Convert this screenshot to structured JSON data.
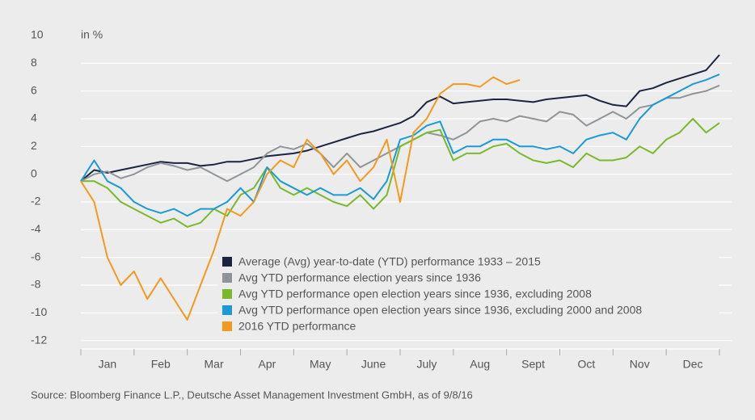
{
  "chart_data": {
    "type": "line",
    "y_unit_label": "in %",
    "source": "Source: Bloomberg Finance L.P., Deutsche Asset Management Investment GmbH, as of 9/8/16",
    "x_categories": [
      "Jan",
      "Feb",
      "Mar",
      "Apr",
      "May",
      "June",
      "July",
      "Aug",
      "Sept",
      "Oct",
      "Nov",
      "Dec"
    ],
    "xlim": [
      0,
      12
    ],
    "xticks": [
      0,
      1,
      2,
      3,
      4,
      5,
      6,
      7,
      8,
      9,
      10,
      11,
      12
    ],
    "x": [
      0,
      0.25,
      0.5,
      0.75,
      1,
      1.25,
      1.5,
      1.75,
      2,
      2.25,
      2.5,
      2.75,
      3,
      3.25,
      3.5,
      3.75,
      4,
      4.25,
      4.5,
      4.75,
      5,
      5.25,
      5.5,
      5.75,
      6,
      6.25,
      6.5,
      6.75,
      7,
      7.25,
      7.5,
      7.75,
      8,
      8.25,
      8.5,
      8.75,
      9,
      9.25,
      9.5,
      9.75,
      10,
      10.25,
      10.5,
      10.75,
      11,
      11.25,
      11.5,
      11.75,
      12
    ],
    "ylim": [
      -12.6,
      10
    ],
    "yticks": [
      10,
      8,
      6,
      4,
      2,
      0,
      -2,
      -4,
      -6,
      -8,
      -10,
      -12
    ],
    "grid": true,
    "series": [
      {
        "name": "Average (Avg) year-to-date (YTD) performance 1933 – 2015",
        "color": "#1b2440",
        "values": [
          -0.5,
          0.3,
          0.1,
          0.3,
          0.5,
          0.7,
          0.9,
          0.8,
          0.8,
          0.6,
          0.7,
          0.9,
          0.9,
          1.1,
          1.3,
          1.4,
          1.5,
          1.7,
          2.0,
          2.3,
          2.6,
          2.9,
          3.1,
          3.4,
          3.7,
          4.2,
          5.2,
          5.6,
          5.1,
          5.2,
          5.3,
          5.4,
          5.4,
          5.3,
          5.2,
          5.4,
          5.5,
          5.6,
          5.7,
          5.3,
          5.0,
          4.9,
          6.0,
          6.2,
          6.6,
          6.9,
          7.2,
          7.5,
          8.6
        ]
      },
      {
        "name": "Avg YTD performance election years since 1936",
        "color": "#8f9499",
        "values": [
          -0.5,
          0,
          0.2,
          -0.3,
          0,
          0.5,
          0.8,
          0.6,
          0.3,
          0.5,
          0,
          -0.5,
          0,
          0.5,
          1.5,
          2.0,
          1.8,
          2.2,
          1.5,
          0.5,
          1.5,
          0.5,
          1.0,
          1.5,
          2.0,
          2.5,
          3.0,
          2.8,
          2.5,
          3.0,
          3.8,
          4.0,
          3.8,
          4.2,
          4.0,
          3.8,
          4.5,
          4.3,
          3.5,
          4.0,
          4.5,
          4.0,
          4.8,
          5.0,
          5.5,
          5.5,
          5.8,
          6.0,
          6.4
        ]
      },
      {
        "name": "Avg YTD performance open election years since 1936, excluding 2008",
        "color": "#7ab929",
        "values": [
          -0.5,
          -0.5,
          -1,
          -2,
          -2.5,
          -3,
          -3.5,
          -3.2,
          -3.8,
          -3.5,
          -2.5,
          -3,
          -1.5,
          -1,
          0.5,
          -1,
          -1.5,
          -1,
          -1.5,
          -2,
          -2.3,
          -1.5,
          -2.5,
          -1.5,
          2,
          2.5,
          3,
          3.2,
          1,
          1.5,
          1.5,
          2,
          2.2,
          1.5,
          1,
          0.8,
          1,
          0.5,
          1.5,
          1,
          1,
          1.2,
          2,
          1.5,
          2.5,
          3,
          4,
          3,
          3.7
        ]
      },
      {
        "name": "Avg YTD performance open election years since 1936, excluding 2000 and 2008",
        "color": "#1a9ad6",
        "values": [
          -0.5,
          1,
          -0.5,
          -1,
          -2,
          -2.5,
          -2.8,
          -2.5,
          -3,
          -2.5,
          -2.5,
          -2,
          -1,
          -2,
          0.5,
          -0.5,
          -1,
          -1.5,
          -1,
          -1.5,
          -1.5,
          -1,
          -1.8,
          -0.5,
          2.5,
          2.8,
          3.5,
          3.8,
          1.5,
          2,
          2,
          2.5,
          2.5,
          2,
          2,
          1.8,
          2,
          1.5,
          2.5,
          2.8,
          3,
          2.5,
          4,
          5,
          5.5,
          6,
          6.5,
          6.8,
          7.2
        ]
      },
      {
        "name": "2016 YTD performance",
        "color": "#f39a1e",
        "values": [
          -0.5,
          -2,
          -6,
          -8,
          -7,
          -9,
          -7.5,
          -9,
          -10.5,
          -8,
          -5.5,
          -2.5,
          -3,
          -2,
          0,
          1,
          0.5,
          2.5,
          1.5,
          0,
          1,
          -0.5,
          0.5,
          2.5,
          -2.0,
          3,
          4,
          5.8,
          6.5,
          6.5,
          6.3,
          7,
          6.5,
          6.8,
          null,
          null,
          null,
          null,
          null,
          null,
          null,
          null,
          null,
          null,
          null,
          null,
          null,
          null,
          null
        ]
      }
    ]
  }
}
